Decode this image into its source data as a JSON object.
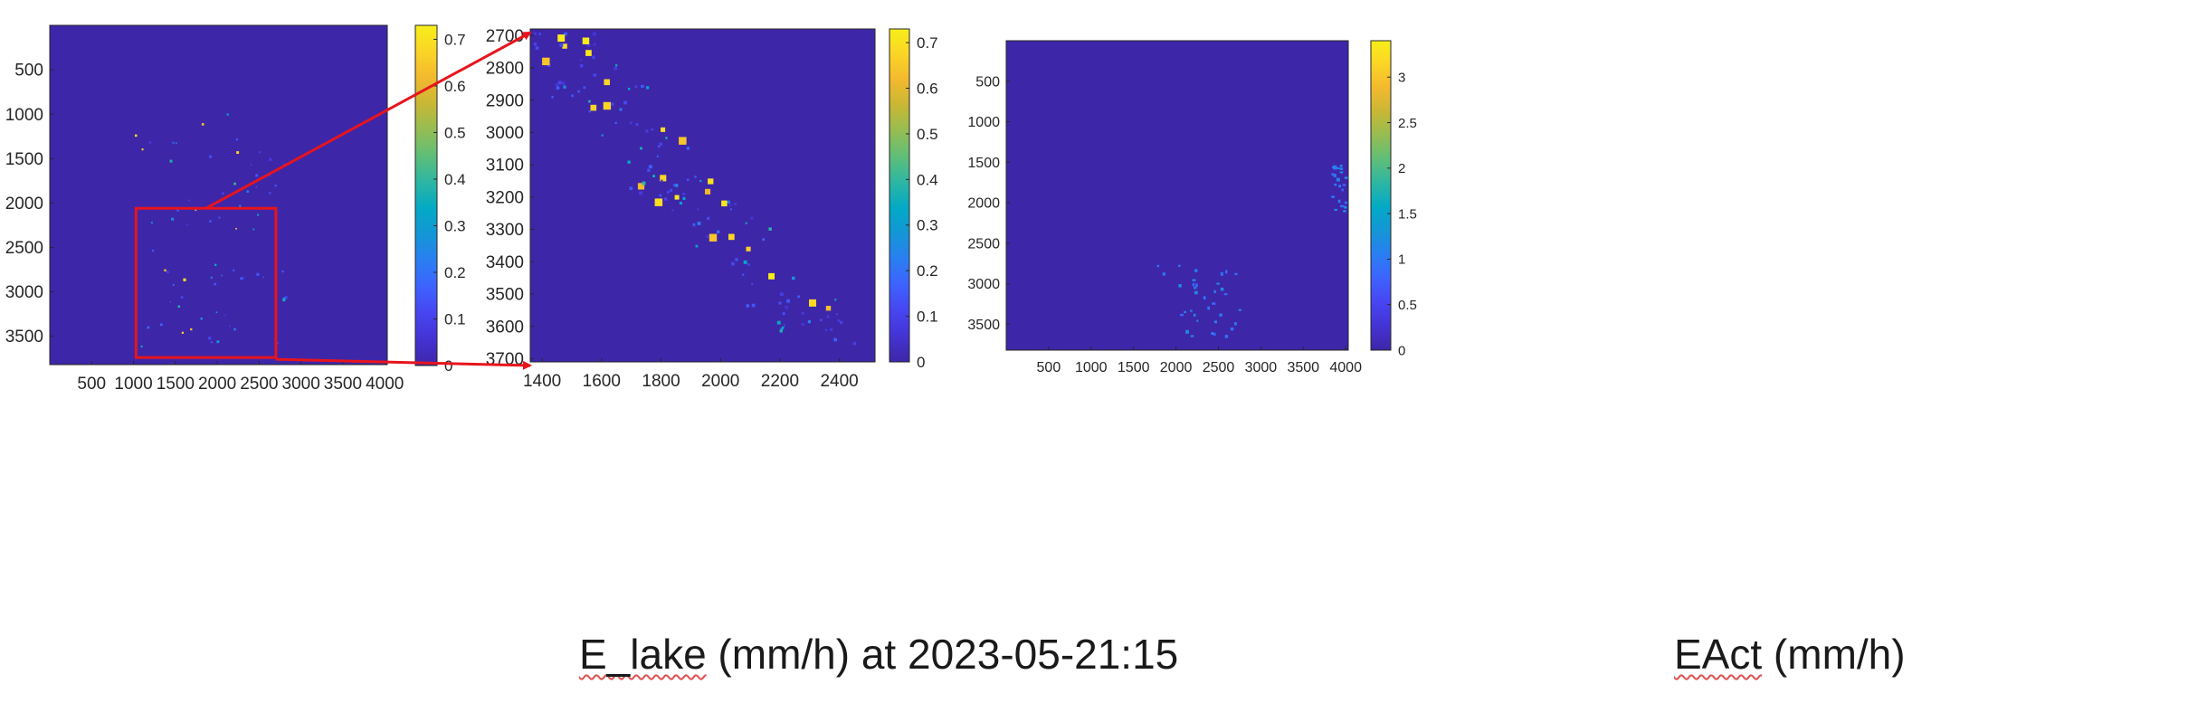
{
  "colors": {
    "background_low": "#3e26a8",
    "frame": "#262626",
    "zoom_box": "#e8141c",
    "parula": [
      "#3e26a8",
      "#4433d3",
      "#4745f1",
      "#3e62fe",
      "#2a7ef2",
      "#1496d7",
      "#03a9c5",
      "#2cb6a4",
      "#5ebe79",
      "#94bd53",
      "#c8b735",
      "#f2b92f",
      "#fbd426",
      "#f6ef19"
    ]
  },
  "chart_data": [
    {
      "type": "heatmap",
      "colormap": "parula",
      "xticks": [
        "500",
        "1000",
        "1500",
        "2000",
        "2500",
        "3000",
        "3500",
        "4000"
      ],
      "yticks": [
        "500",
        "1000",
        "1500",
        "2000",
        "2500",
        "3000",
        "3500"
      ],
      "xlim": [
        0,
        4030
      ],
      "ylim": [
        3820,
        0
      ],
      "colorbar_ticks": [
        "0",
        "0.1",
        "0.2",
        "0.3",
        "0.4",
        "0.5",
        "0.6",
        "0.7"
      ],
      "clim": [
        0,
        0.73
      ],
      "zoom_region": {
        "x": [
          1030,
          2700
        ],
        "y": [
          2060,
          3740
        ]
      }
    },
    {
      "type": "heatmap",
      "colormap": "parula",
      "xticks": [
        "1400",
        "1600",
        "1800",
        "2000",
        "2200",
        "2400"
      ],
      "yticks": [
        "2700",
        "2800",
        "2900",
        "3000",
        "3100",
        "3200",
        "3300",
        "3400",
        "3500",
        "3600",
        "3700"
      ],
      "xlim": [
        1360,
        2520
      ],
      "ylim": [
        3710,
        2680
      ],
      "colorbar_ticks": [
        "0",
        "0.1",
        "0.2",
        "0.3",
        "0.4",
        "0.5",
        "0.6",
        "0.7"
      ],
      "clim": [
        0,
        0.73
      ]
    },
    {
      "type": "heatmap",
      "colormap": "parula",
      "xticks": [
        "500",
        "1000",
        "1500",
        "2000",
        "2500",
        "3000",
        "3500",
        "4000"
      ],
      "yticks": [
        "500",
        "1000",
        "1500",
        "2000",
        "2500",
        "3000",
        "3500"
      ],
      "xlim": [
        0,
        4030
      ],
      "ylim": [
        3820,
        0
      ],
      "colorbar_ticks": [
        "0",
        "0.5",
        "1",
        "1.5",
        "2",
        "2.5",
        "3"
      ],
      "clim": [
        0,
        3.4
      ]
    }
  ],
  "captions": {
    "left_main": "E_lake",
    "left_rest": " (mm/h) at 2023-05-21:15",
    "right_main": "EAct",
    "right_rest": " (mm/h)"
  }
}
